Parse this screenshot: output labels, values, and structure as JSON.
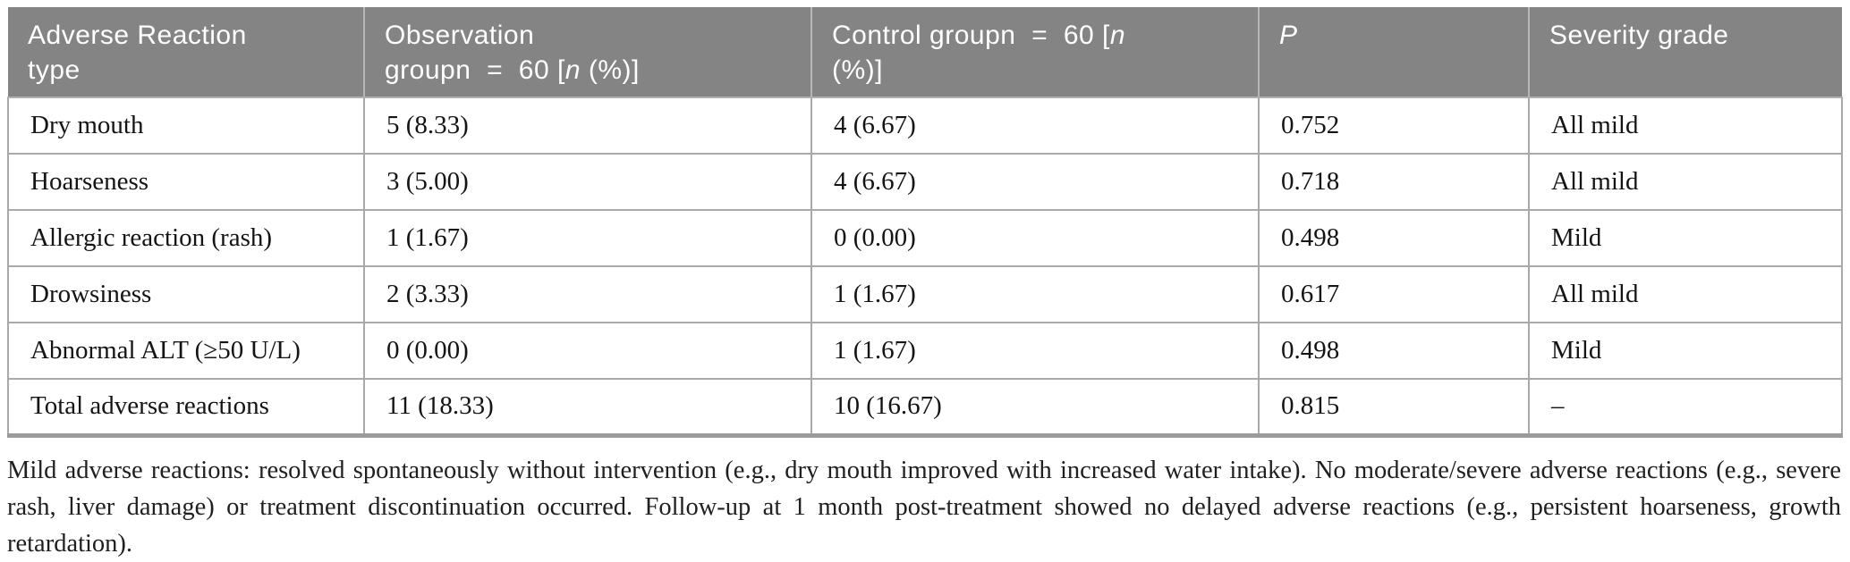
{
  "table": {
    "header": {
      "col1_line1": "Adverse Reaction",
      "col1_line2": "type",
      "col2_line1": "Observation",
      "col2_line2_pre": "groupn  =  60 [",
      "col2_line2_n": "n",
      "col2_line2_post": " (%)]",
      "col3_line1_pre": "Control groupn  =  60 [",
      "col3_line1_n": "n",
      "col3_line2": "(%)]",
      "col4_label": "P",
      "col5_label": "Severity grade"
    },
    "rows": [
      {
        "type": "Dry mouth",
        "obs": "5 (8.33)",
        "ctrl": "4 (6.67)",
        "p": "0.752",
        "severity": "All mild"
      },
      {
        "type": "Hoarseness",
        "obs": "3 (5.00)",
        "ctrl": "4 (6.67)",
        "p": "0.718",
        "severity": "All mild"
      },
      {
        "type": "Allergic reaction (rash)",
        "obs": "1 (1.67)",
        "ctrl": "0 (0.00)",
        "p": "0.498",
        "severity": "Mild"
      },
      {
        "type": "Drowsiness",
        "obs": "2 (3.33)",
        "ctrl": "1 (1.67)",
        "p": "0.617",
        "severity": "All mild"
      },
      {
        "type": "Abnormal ALT (≥50 U/L)",
        "obs": "0 (0.00)",
        "ctrl": "1 (1.67)",
        "p": "0.498",
        "severity": "Mild"
      },
      {
        "type": "Total adverse reactions",
        "obs": "11 (18.33)",
        "ctrl": "10 (16.67)",
        "p": "0.815",
        "severity": "–"
      }
    ]
  },
  "footnote": "Mild adverse reactions: resolved spontaneously without intervention (e.g., dry mouth improved with increased water intake). No moderate/severe adverse reactions (e.g., severe rash, liver damage) or treatment discontinuation occurred. Follow-up at 1 month post-treatment showed no delayed adverse reactions (e.g., persistent hoarseness, growth retardation).",
  "colors": {
    "header_bg": "#848484",
    "header_text": "#ffffff",
    "cell_border": "#a9a9a9",
    "bottom_border": "#9b9b9b"
  }
}
